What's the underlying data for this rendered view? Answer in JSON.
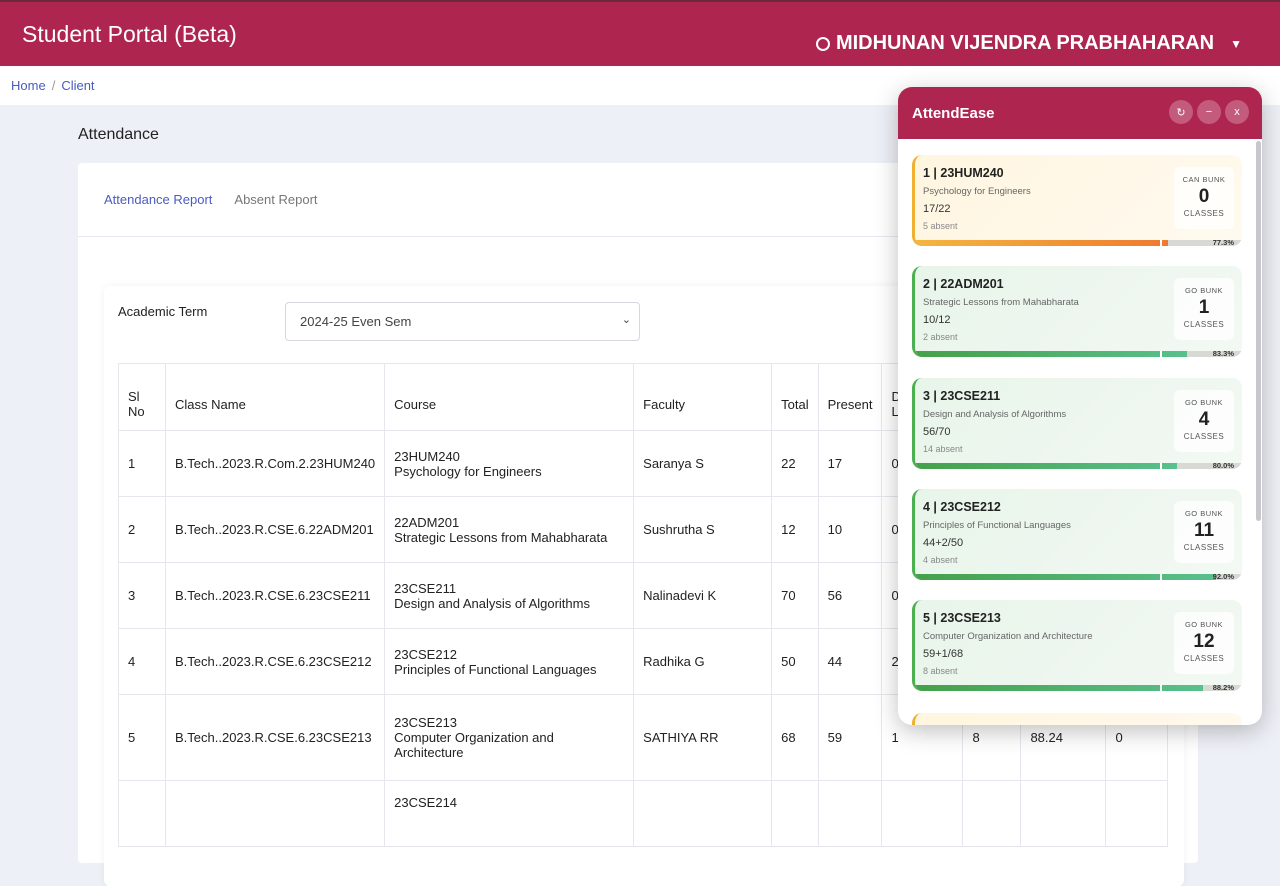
{
  "header": {
    "title": "Student Portal (Beta)",
    "user": "MIDHUNAN VIJENDRA PRABHAHARAN"
  },
  "breadcrumb": [
    "Home",
    "Client"
  ],
  "page_title": "Attendance",
  "tabs": [
    "Attendance Report",
    "Absent Report"
  ],
  "filter": {
    "label": "Academic Term",
    "value": "2024-25 Even Sem"
  },
  "table": {
    "headers": [
      "Sl No",
      "Class Name",
      "Course",
      "Faculty",
      "Total",
      "Present",
      "Duty Leave"
    ],
    "rows": [
      {
        "sl": "1",
        "class": "B.Tech..2023.R.Com.2.23HUM240",
        "code": "23HUM240",
        "course": "Psychology for Engineers",
        "faculty": "Saranya S",
        "total": "22",
        "present": "17",
        "duty": "0"
      },
      {
        "sl": "2",
        "class": "B.Tech..2023.R.CSE.6.22ADM201",
        "code": "22ADM201",
        "course": "Strategic Lessons from Mahabharata",
        "faculty": "Sushrutha S",
        "total": "12",
        "present": "10",
        "duty": "0"
      },
      {
        "sl": "3",
        "class": "B.Tech..2023.R.CSE.6.23CSE211",
        "code": "23CSE211",
        "course": "Design and Analysis of Algorithms",
        "faculty": "Nalinadevi K",
        "total": "70",
        "present": "56",
        "duty": "0"
      },
      {
        "sl": "4",
        "class": "B.Tech..2023.R.CSE.6.23CSE212",
        "code": "23CSE212",
        "course": "Principles of Functional Languages",
        "faculty": "Radhika G",
        "total": "50",
        "present": "44",
        "duty": "2"
      },
      {
        "sl": "5",
        "class": "B.Tech..2023.R.CSE.6.23CSE213",
        "code": "23CSE213",
        "course": "Computer Organization and Architecture",
        "faculty": "SATHIYA RR",
        "total": "68",
        "present": "59",
        "duty": "1",
        "absent": "8",
        "percent": "88.24",
        "extra": "0"
      }
    ],
    "partial_code": "23CSE214"
  },
  "widget": {
    "title": "AttendEase",
    "buttons": {
      "refresh": "↻",
      "minimize": "−",
      "close": "x"
    },
    "cards": [
      {
        "title": "1 | 23HUM240",
        "name": "Psychology for Engineers",
        "ratio": "17/22",
        "absent": "5 absent",
        "badge": "CAN BUNK",
        "count": "0",
        "unit": "CLASSES",
        "percent": "77.3%",
        "value": 77.3,
        "status": "warn"
      },
      {
        "title": "2 | 22ADM201",
        "name": "Strategic Lessons from Mahabharata",
        "ratio": "10/12",
        "absent": "2 absent",
        "badge": "GO BUNK",
        "count": "1",
        "unit": "CLASSES",
        "percent": "83.3%",
        "value": 83.3,
        "status": "good"
      },
      {
        "title": "3 | 23CSE211",
        "name": "Design and Analysis of Algorithms",
        "ratio": "56/70",
        "absent": "14 absent",
        "badge": "GO BUNK",
        "count": "4",
        "unit": "CLASSES",
        "percent": "80.0%",
        "value": 80.0,
        "status": "good"
      },
      {
        "title": "4 | 23CSE212",
        "name": "Principles of Functional Languages",
        "ratio": "44+2/50",
        "absent": "4 absent",
        "badge": "GO BUNK",
        "count": "11",
        "unit": "CLASSES",
        "percent": "92.0%",
        "value": 92.0,
        "status": "good"
      },
      {
        "title": "5 | 23CSE213",
        "name": "Computer Organization and Architecture",
        "ratio": "59+1/68",
        "absent": "8 absent",
        "badge": "GO BUNK",
        "count": "12",
        "unit": "CLASSES",
        "percent": "88.2%",
        "value": 88.2,
        "status": "good"
      }
    ]
  }
}
